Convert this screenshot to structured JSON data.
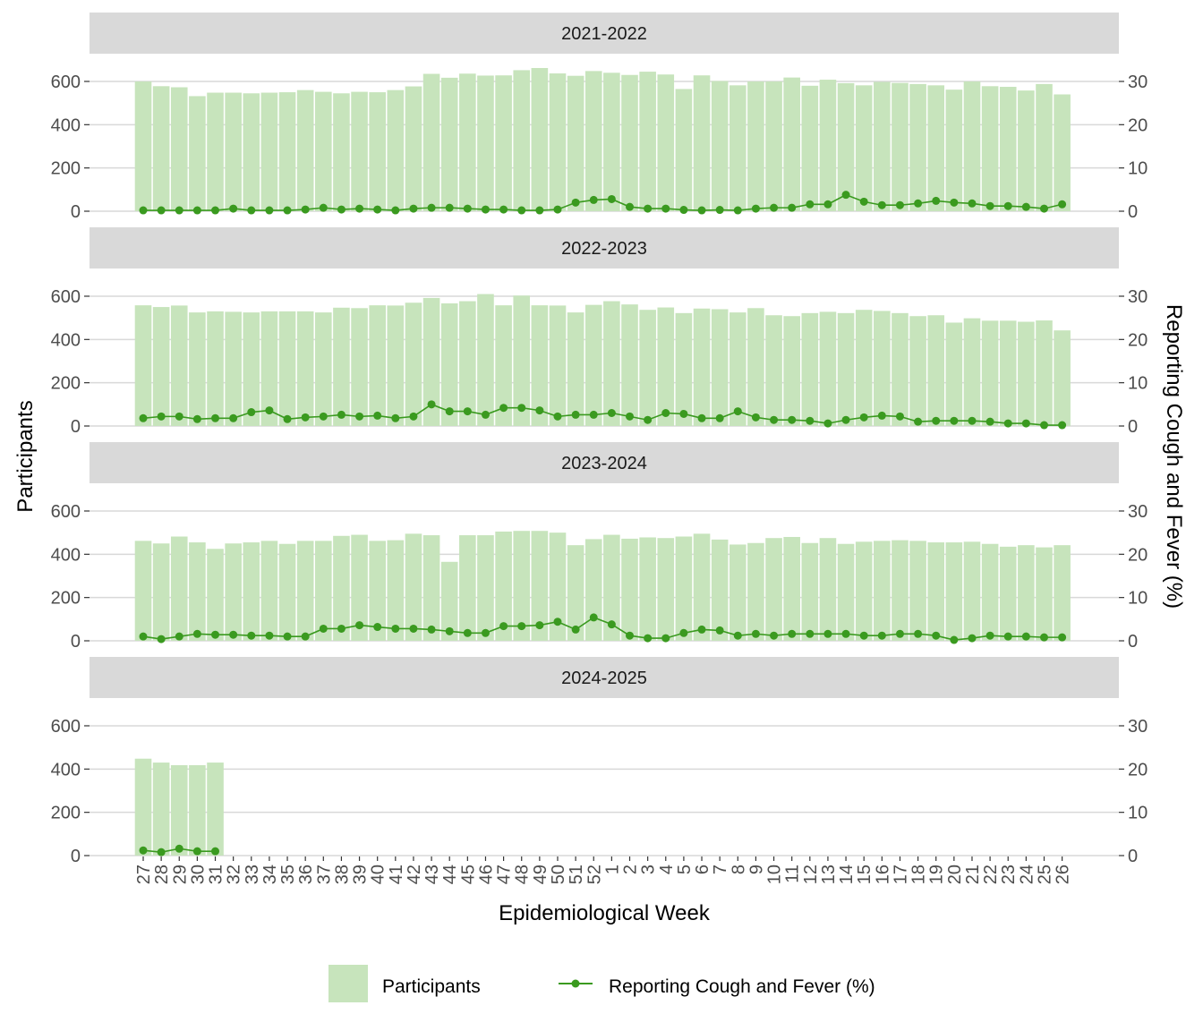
{
  "colors": {
    "bar": "#c7e4bc",
    "line": "#3a9a1f",
    "point": "#3a9a1f",
    "strip": "#d9d9d9",
    "grid": "#d9d9d9"
  },
  "legend": {
    "bar_label": "Participants",
    "line_label": "Reporting Cough and Fever (%)"
  },
  "chart_data": {
    "type": "bar",
    "combo": "bar + line (dual axis), faceted by season",
    "xlabel": "Epidemiological Week",
    "ylabel_left": "Participants",
    "ylabel_right": "Reporting Cough and Fever (%)",
    "ylim_left": [
      0,
      700
    ],
    "ylim_right": [
      0,
      35
    ],
    "yticks_left": [
      0,
      200,
      400,
      600
    ],
    "yticks_right": [
      0,
      10,
      20,
      30
    ],
    "grid": "horizontal",
    "legend_position": "bottom",
    "categories": [
      "27",
      "28",
      "29",
      "30",
      "31",
      "32",
      "33",
      "34",
      "35",
      "36",
      "37",
      "38",
      "39",
      "40",
      "41",
      "42",
      "43",
      "44",
      "45",
      "46",
      "47",
      "48",
      "49",
      "50",
      "51",
      "52",
      "1",
      "2",
      "3",
      "4",
      "5",
      "6",
      "7",
      "8",
      "9",
      "10",
      "11",
      "12",
      "13",
      "14",
      "15",
      "16",
      "17",
      "18",
      "19",
      "20",
      "21",
      "22",
      "23",
      "24",
      "25",
      "26"
    ],
    "panels": [
      {
        "season": "2021-2022",
        "participants": [
          600,
          578,
          573,
          532,
          548,
          548,
          545,
          548,
          550,
          560,
          552,
          545,
          552,
          550,
          560,
          577,
          635,
          617,
          636,
          627,
          628,
          652,
          662,
          637,
          626,
          648,
          640,
          630,
          645,
          632,
          565,
          628,
          602,
          582,
          600,
          600,
          618,
          580,
          608,
          592,
          582,
          598,
          593,
          588,
          582,
          562,
          600,
          578,
          575,
          558,
          588,
          540
        ],
        "cough_fever_pct": [
          0.2,
          0.2,
          0.2,
          0.2,
          0.2,
          0.6,
          0.2,
          0.2,
          0.2,
          0.4,
          0.8,
          0.4,
          0.6,
          0.4,
          0.2,
          0.6,
          0.8,
          0.8,
          0.6,
          0.4,
          0.4,
          0.2,
          0.2,
          0.4,
          2.0,
          2.6,
          2.8,
          1.0,
          0.6,
          0.6,
          0.3,
          0.2,
          0.3,
          0.2,
          0.6,
          0.8,
          0.8,
          1.6,
          1.6,
          3.8,
          2.2,
          1.4,
          1.4,
          1.8,
          2.4,
          2.0,
          1.8,
          1.2,
          1.2,
          1.0,
          0.6,
          1.6
        ]
      },
      {
        "season": "2022-2023",
        "participants": [
          558,
          550,
          557,
          525,
          530,
          528,
          525,
          530,
          530,
          530,
          525,
          547,
          545,
          558,
          557,
          570,
          592,
          567,
          577,
          610,
          558,
          603,
          558,
          557,
          525,
          560,
          577,
          562,
          537,
          548,
          522,
          543,
          540,
          525,
          545,
          512,
          508,
          522,
          528,
          522,
          537,
          532,
          522,
          508,
          512,
          478,
          498,
          487,
          487,
          482,
          488,
          442
        ],
        "cough_fever_pct": [
          1.8,
          2.2,
          2.2,
          1.6,
          1.8,
          1.8,
          3.2,
          3.6,
          1.6,
          2.0,
          2.2,
          2.6,
          2.2,
          2.4,
          1.8,
          2.2,
          5.0,
          3.4,
          3.4,
          2.6,
          4.2,
          4.2,
          3.6,
          2.2,
          2.6,
          2.6,
          3.0,
          2.2,
          1.4,
          3.0,
          2.8,
          1.8,
          1.8,
          3.4,
          2.0,
          1.4,
          1.4,
          1.2,
          0.6,
          1.4,
          2.0,
          2.4,
          2.2,
          1.0,
          1.2,
          1.2,
          1.2,
          1.0,
          0.6,
          0.6,
          0.2,
          0.2
        ]
      },
      {
        "season": "2023-2024",
        "participants": [
          462,
          450,
          482,
          455,
          425,
          450,
          455,
          462,
          448,
          462,
          462,
          485,
          490,
          462,
          465,
          495,
          488,
          365,
          488,
          488,
          505,
          508,
          508,
          500,
          442,
          470,
          490,
          472,
          478,
          475,
          482,
          495,
          468,
          445,
          452,
          475,
          480,
          452,
          475,
          448,
          458,
          462,
          465,
          462,
          455,
          455,
          458,
          448,
          435,
          442,
          432,
          442
        ],
        "cough_fever_pct": [
          1.0,
          0.4,
          1.0,
          1.6,
          1.4,
          1.4,
          1.2,
          1.2,
          1.0,
          1.0,
          2.8,
          2.8,
          3.6,
          3.2,
          2.8,
          2.8,
          2.6,
          2.2,
          1.8,
          1.8,
          3.4,
          3.4,
          3.6,
          4.4,
          2.6,
          5.4,
          3.8,
          1.2,
          0.6,
          0.6,
          1.8,
          2.6,
          2.4,
          1.2,
          1.6,
          1.2,
          1.6,
          1.6,
          1.6,
          1.6,
          1.2,
          1.2,
          1.6,
          1.6,
          1.2,
          0.2,
          0.6,
          1.2,
          1.0,
          1.0,
          0.8,
          0.8
        ]
      },
      {
        "season": "2024-2025",
        "participants": [
          448,
          430,
          418,
          418,
          430,
          null,
          null,
          null,
          null,
          null,
          null,
          null,
          null,
          null,
          null,
          null,
          null,
          null,
          null,
          null,
          null,
          null,
          null,
          null,
          null,
          null,
          null,
          null,
          null,
          null,
          null,
          null,
          null,
          null,
          null,
          null,
          null,
          null,
          null,
          null,
          null,
          null,
          null,
          null,
          null,
          null,
          null,
          null,
          null,
          null,
          null,
          null
        ],
        "cough_fever_pct": [
          1.2,
          0.8,
          1.6,
          1.0,
          1.0,
          null,
          null,
          null,
          null,
          null,
          null,
          null,
          null,
          null,
          null,
          null,
          null,
          null,
          null,
          null,
          null,
          null,
          null,
          null,
          null,
          null,
          null,
          null,
          null,
          null,
          null,
          null,
          null,
          null,
          null,
          null,
          null,
          null,
          null,
          null,
          null,
          null,
          null,
          null,
          null,
          null,
          null,
          null,
          null,
          null,
          null,
          null
        ]
      }
    ]
  }
}
